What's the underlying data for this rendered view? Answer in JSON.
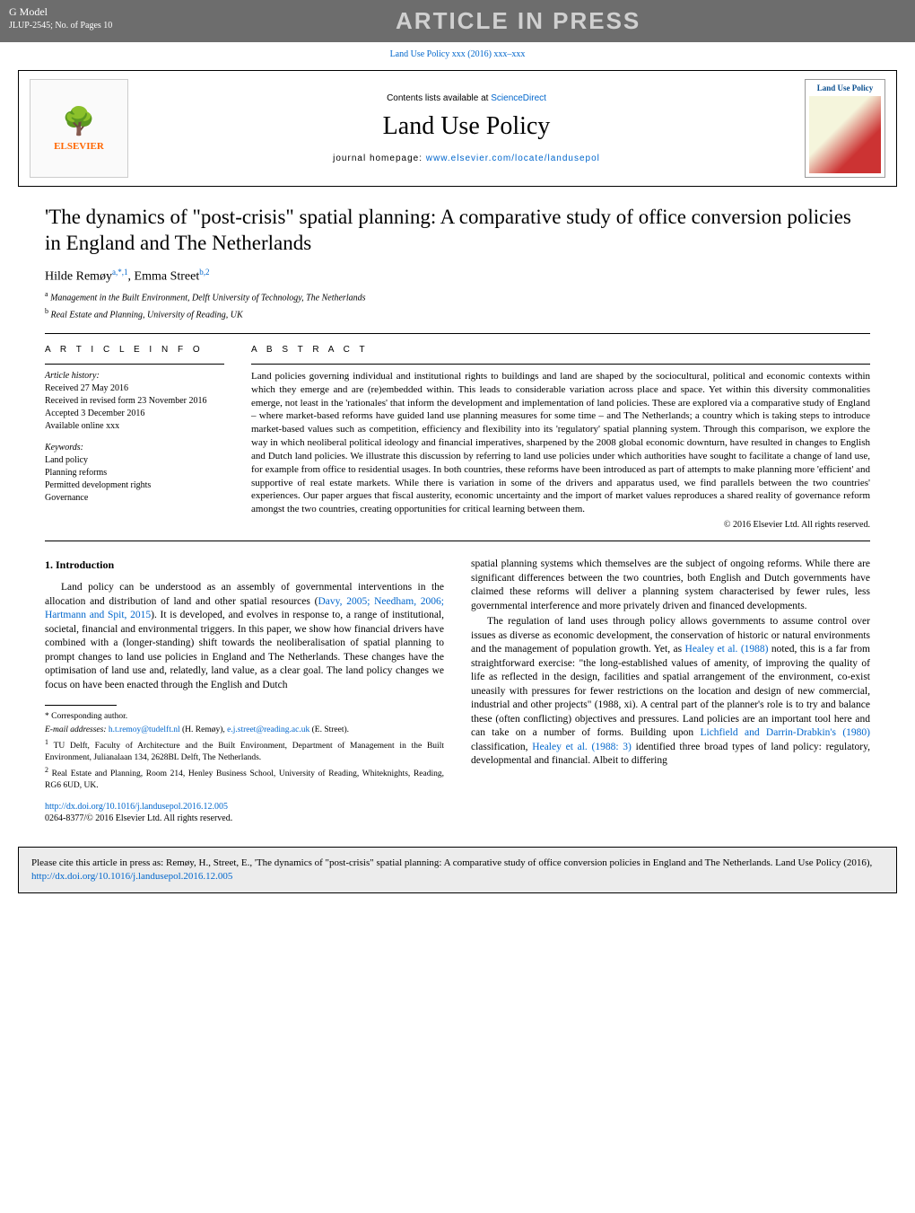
{
  "header": {
    "gmodel": "G Model",
    "jobline": "JLUP-2545; No. of Pages 10",
    "aip": "ARTICLE IN PRESS",
    "topCitation": "Land Use Policy xxx (2016) xxx–xxx"
  },
  "masthead": {
    "contentsLine": "Contents lists available at ",
    "sciencedirect": "ScienceDirect",
    "journal": "Land Use Policy",
    "homepagePrefix": "journal homepage: ",
    "homepageUrl": "www.elsevier.com/locate/landusepol",
    "elsevierName": "ELSEVIER",
    "coverTitle": "Land Use Policy"
  },
  "article": {
    "title": "'The dynamics of \"post-crisis\" spatial planning: A comparative study of office conversion policies in England and The Netherlands",
    "authors": [
      {
        "name": "Hilde Remøy",
        "marks": "a,*,1"
      },
      {
        "name": "Emma Street",
        "marks": "b,2"
      }
    ],
    "affiliations": [
      {
        "mark": "a",
        "text": "Management in the Built Environment, Delft University of Technology, The Netherlands"
      },
      {
        "mark": "b",
        "text": "Real Estate and Planning, University of Reading, UK"
      }
    ]
  },
  "info": {
    "headInfo": "A R T I C L E   I N F O",
    "historyLabel": "Article history:",
    "history": [
      "Received 27 May 2016",
      "Received in revised form 23 November 2016",
      "Accepted 3 December 2016",
      "Available online xxx"
    ],
    "keywordsLabel": "Keywords:",
    "keywords": [
      "Land policy",
      "Planning reforms",
      "Permitted development rights",
      "Governance"
    ]
  },
  "abstract": {
    "head": "A B S T R A C T",
    "text": "Land policies governing individual and institutional rights to buildings and land are shaped by the sociocultural, political and economic contexts within which they emerge and are (re)embedded within. This leads to considerable variation across place and space. Yet within this diversity commonalities emerge, not least in the 'rationales' that inform the development and implementation of land policies. These are explored via a comparative study of England – where market-based reforms have guided land use planning measures for some time – and The Netherlands; a country which is taking steps to introduce market-based values such as competition, efficiency and flexibility into its 'regulatory' spatial planning system. Through this comparison, we explore the way in which neoliberal political ideology and financial imperatives, sharpened by the 2008 global economic downturn, have resulted in changes to English and Dutch land policies. We illustrate this discussion by referring to land use policies under which authorities have sought to facilitate a change of land use, for example from office to residential usages. In both countries, these reforms have been introduced as part of attempts to make planning more 'efficient' and supportive of real estate markets. While there is variation in some of the drivers and apparatus used, we find parallels between the two countries' experiences. Our paper argues that fiscal austerity, economic uncertainty and the import of market values reproduces a shared reality of governance reform amongst the two countries, creating opportunities for critical learning between them.",
    "copyright": "© 2016 Elsevier Ltd. All rights reserved."
  },
  "body": {
    "sec1": "1. Introduction",
    "leftPara1a": "Land policy can be understood as an assembly of governmental interventions in the allocation and distribution of land and other spatial resources (",
    "leftLink1": "Davy, 2005; Needham, 2006; Hartmann and Spit, 2015",
    "leftPara1b": "). It is developed, and evolves in response to, a range of institutional, societal, financial and environmental triggers. In this paper, we show how financial drivers have combined with a (longer-standing) shift towards the neoliberalisation of spatial planning to prompt changes to land use policies in England and The Netherlands. These changes have the optimisation of land use and, relatedly, land value, as a clear goal. The land policy changes we focus on have been enacted through the English and Dutch",
    "rightPara1": "spatial planning systems which themselves are the subject of ongoing reforms. While there are significant differences between the two countries, both English and Dutch governments have claimed these reforms will deliver a planning system characterised by fewer rules, less governmental interference and more privately driven and financed developments.",
    "rightPara2a": "The regulation of land uses through policy allows governments to assume control over issues as diverse as economic development, the conservation of historic or natural environments and the management of population growth. Yet, as ",
    "rightLink1": "Healey et al. (1988)",
    "rightPara2b": " noted, this is a far from straightforward exercise: \"the long-established values of amenity, of improving the quality of life as reflected in the design, facilities and spatial arrangement of the environment, co-exist uneasily with pressures for fewer restrictions on the location and design of new commercial, industrial and other projects\" (1988, xi). A central part of the planner's role is to try and balance these (often conflicting) objectives and pressures. Land policies are an important tool here and can take on a number of forms. Building upon ",
    "rightLink2": "Lichfield and Darrin-Drabkin's (1980)",
    "rightPara2c": " classification, ",
    "rightLink3": "Healey et al. (1988: 3)",
    "rightPara2d": " identified three broad types of land policy: regulatory, developmental and financial. Albeit to differing"
  },
  "footnotes": {
    "corr": "* Corresponding author.",
    "emailLabel": "E-mail addresses: ",
    "email1": "h.t.remoy@tudelft.nl",
    "email1name": " (H. Remøy), ",
    "email2": "e.j.street@reading.ac.uk",
    "email2name": " (E. Street).",
    "fn1": "TU Delft, Faculty of Architecture and the Built Environment, Department of Management in the Built Environment, Julianalaan 134, 2628BL Delft, The Netherlands.",
    "fn2": "Real Estate and Planning, Room 214, Henley Business School, University of Reading, Whiteknights, Reading, RG6 6UD, UK."
  },
  "doi": {
    "link": "http://dx.doi.org/10.1016/j.landusepol.2016.12.005",
    "line2": "0264-8377/© 2016 Elsevier Ltd. All rights reserved."
  },
  "citebox": {
    "textA": "Please cite this article in press as: Remøy, H., Street, E., 'The dynamics of \"post-crisis\" spatial planning: A comparative study of office conversion policies in England and The Netherlands. Land Use Policy (2016), ",
    "link": "http://dx.doi.org/10.1016/j.landusepol.2016.12.005"
  }
}
